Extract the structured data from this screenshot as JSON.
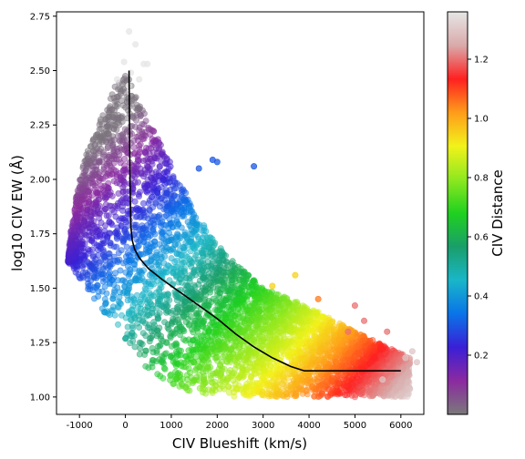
{
  "chart_data": {
    "type": "scatter",
    "xlabel": "CIV Blueshift (km/s)",
    "ylabel": "log10 CIV EW (Å)",
    "xlim": [
      -1500,
      6500
    ],
    "ylim": [
      0.92,
      2.77
    ],
    "x_ticks": [
      -1000,
      0,
      1000,
      2000,
      3000,
      4000,
      5000,
      6000
    ],
    "y_ticks": [
      1.0,
      1.25,
      1.5,
      1.75,
      2.0,
      2.25,
      2.5,
      2.75
    ],
    "grid": false,
    "colorbar": {
      "label": "CIV Distance",
      "range": [
        0.0,
        1.36
      ],
      "ticks": [
        0.2,
        0.4,
        0.6,
        0.8,
        1.0,
        1.2
      ],
      "colormap": [
        "#7a7a7a",
        "#8b2aa0",
        "#3a1fd6",
        "#0a74e8",
        "#19b6c8",
        "#1a9e6a",
        "#1fd11f",
        "#8ee81f",
        "#f2f21a",
        "#ff9c1a",
        "#ff2020",
        "#d9aaaa",
        "#e6e6e6"
      ]
    },
    "series": [
      {
        "kind": "scatter-cloud",
        "color_variable": "CIV Distance",
        "boundary": {
          "upper_edge": {
            "x": [
              0,
              200,
              800,
              1600,
              2200,
              3000,
              3600,
              4300,
              5000,
              5800,
              6200
            ],
            "y": [
              2.5,
              2.4,
              2.15,
              1.82,
              1.65,
              1.5,
              1.45,
              1.38,
              1.3,
              1.22,
              1.18
            ]
          },
          "lower_edge": {
            "x": [
              0,
              500,
              1000,
              1500,
              2000,
              2500,
              3000,
              4000,
              5000,
              6000
            ],
            "y": [
              1.25,
              1.12,
              1.05,
              1.02,
              1.0,
              1.0,
              1.0,
              1.0,
              1.0,
              1.0
            ]
          },
          "left_edge": {
            "x": [
              -1250,
              -1200,
              -1050,
              -850,
              -550,
              -300,
              -100
            ],
            "y": [
              1.62,
              1.75,
              1.95,
              2.12,
              2.28,
              2.4,
              2.48
            ]
          }
        },
        "outliers": [
          {
            "x": 80,
            "y": 2.68,
            "d": 1.36
          },
          {
            "x": 220,
            "y": 2.62,
            "d": 1.36
          },
          {
            "x": -30,
            "y": 2.54,
            "d": 1.36
          },
          {
            "x": 400,
            "y": 2.53,
            "d": 1.36
          },
          {
            "x": 480,
            "y": 2.53,
            "d": 1.36
          },
          {
            "x": 120,
            "y": 2.49,
            "d": 1.36
          },
          {
            "x": -180,
            "y": 2.46,
            "d": 1.36
          },
          {
            "x": 300,
            "y": 2.46,
            "d": 1.36
          },
          {
            "x": 70,
            "y": 2.43,
            "d": 1.36
          },
          {
            "x": 2800,
            "y": 2.06,
            "d": 0.3
          },
          {
            "x": 1900,
            "y": 2.09,
            "d": 0.3
          },
          {
            "x": 1600,
            "y": 2.05,
            "d": 0.3
          },
          {
            "x": 2000,
            "y": 2.08,
            "d": 0.3
          },
          {
            "x": 3200,
            "y": 1.51,
            "d": 0.95
          },
          {
            "x": 3700,
            "y": 1.56,
            "d": 0.95
          },
          {
            "x": 4200,
            "y": 1.45,
            "d": 1.05
          },
          {
            "x": 5200,
            "y": 1.35,
            "d": 1.2
          },
          {
            "x": 5700,
            "y": 1.3,
            "d": 1.2
          },
          {
            "x": 6100,
            "y": 1.18,
            "d": 1.3
          },
          {
            "x": 6350,
            "y": 1.16,
            "d": 1.3
          },
          {
            "x": 6250,
            "y": 1.21,
            "d": 1.3
          },
          {
            "x": 5000,
            "y": 1.42,
            "d": 1.2
          },
          {
            "x": 4850,
            "y": 1.3,
            "d": 1.2
          },
          {
            "x": 5600,
            "y": 1.08,
            "d": 1.3
          }
        ]
      },
      {
        "kind": "line",
        "color": "#000000",
        "x": [
          80,
          90,
          100,
          120,
          150,
          200,
          300,
          500,
          800,
          1200,
          1600,
          2000,
          2400,
          2800,
          3200,
          3600,
          3900,
          4200,
          4600,
          5000,
          5500,
          6000
        ],
        "y": [
          2.5,
          2.25,
          2.0,
          1.78,
          1.72,
          1.68,
          1.64,
          1.59,
          1.54,
          1.48,
          1.42,
          1.36,
          1.29,
          1.23,
          1.18,
          1.14,
          1.12,
          1.12,
          1.12,
          1.12,
          1.12,
          1.12
        ]
      }
    ]
  }
}
